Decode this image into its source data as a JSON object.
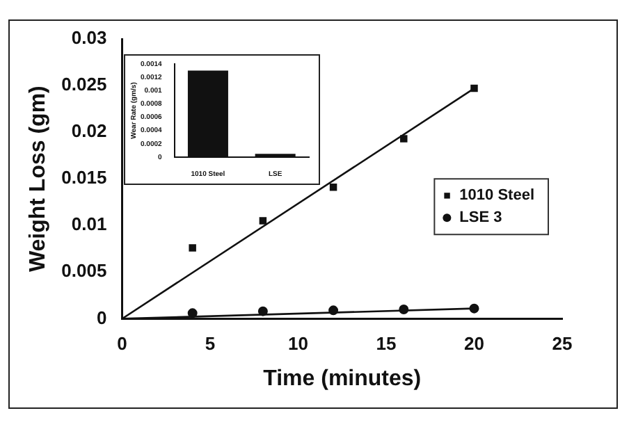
{
  "chart_data": [
    {
      "type": "scatter",
      "xlabel": "Time (minutes)",
      "ylabel": "Weight Loss (gm)",
      "xlim": [
        0,
        25
      ],
      "ylim": [
        0,
        0.03
      ],
      "xticks": [
        0,
        5,
        10,
        15,
        20,
        25
      ],
      "yticks": [
        0,
        0.005,
        0.01,
        0.015,
        0.02,
        0.025,
        0.03
      ],
      "grid": false,
      "legend": "right",
      "series": [
        {
          "name": "1010 Steel",
          "marker": "square",
          "color": "#111111",
          "x": [
            4,
            8,
            12,
            16,
            20
          ],
          "values": [
            0.0076,
            0.0105,
            0.0141,
            0.0193,
            0.0247
          ]
        },
        {
          "name": "LSE 3",
          "marker": "circle",
          "color": "#111111",
          "x": [
            4,
            8,
            12,
            16,
            20
          ],
          "values": [
            0.0006,
            0.0008,
            0.0009,
            0.001,
            0.0011
          ]
        },
        {
          "type": "line",
          "marker": "none",
          "color": "#111111",
          "x": [
            0,
            20
          ],
          "values": [
            0,
            0.0247
          ]
        },
        {
          "type": "line",
          "marker": "none",
          "color": "#111111",
          "x": [
            0,
            20
          ],
          "values": [
            0,
            0.0011
          ]
        }
      ]
    },
    {
      "type": "bar",
      "ylabel": "Wear Rate (gm/s)",
      "categories": [
        "1010 Steel",
        "LSE"
      ],
      "values": [
        0.0013,
        5e-05
      ],
      "color": "#111111",
      "ylim": [
        0,
        0.0014
      ],
      "yticks": [
        0,
        0.0002,
        0.0004,
        0.0006,
        0.0008,
        0.001,
        0.0012,
        0.0014
      ],
      "grid": false,
      "legend": false
    }
  ]
}
